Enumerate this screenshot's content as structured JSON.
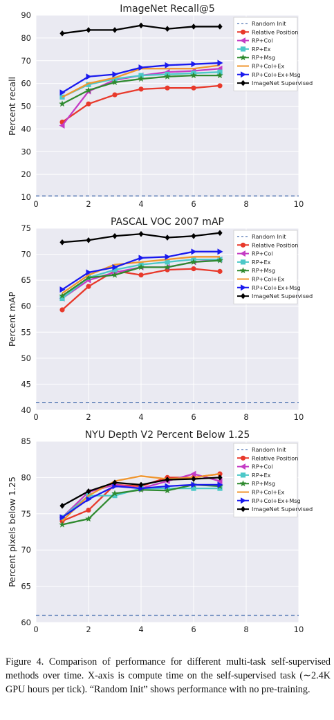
{
  "chart_data": [
    {
      "type": "line",
      "title": "ImageNet Recall@5",
      "xlabel": "",
      "ylabel": "Percent recall",
      "xlim": [
        0,
        10
      ],
      "ylim": [
        10,
        90
      ],
      "xticks": [
        0,
        2,
        4,
        6,
        8,
        10
      ],
      "yticks": [
        10,
        20,
        30,
        40,
        50,
        60,
        70,
        80,
        90
      ],
      "legend_position": "top-right",
      "grid": true,
      "x": [
        1,
        2,
        3,
        4,
        5,
        6,
        7
      ],
      "series": [
        {
          "name": "Random Init",
          "style": "dashed",
          "color": "#4c72b0",
          "marker": "none",
          "values": [
            10.5,
            10.5,
            10.5,
            10.5,
            10.5,
            10.5,
            10.5
          ]
        },
        {
          "name": "Relative Position",
          "color": "#e8392b",
          "marker": "circle",
          "values": [
            43,
            51,
            55,
            57.5,
            58,
            58,
            59
          ]
        },
        {
          "name": "RP+Col",
          "color": "#c43cc4",
          "marker": "triangle-left",
          "values": [
            41.5,
            56.5,
            61.5,
            63.5,
            65,
            65.5,
            66.5
          ]
        },
        {
          "name": "RP+Ex",
          "color": "#4cc8c8",
          "marker": "square",
          "values": [
            54,
            59.5,
            62,
            63.5,
            64,
            64.5,
            65
          ]
        },
        {
          "name": "RP+Msg",
          "color": "#2f8a2f",
          "marker": "star",
          "values": [
            51,
            57,
            60.5,
            62,
            63,
            63.5,
            63.5
          ]
        },
        {
          "name": "RP+Col+Ex",
          "color": "#f0962e",
          "marker": "none",
          "values": [
            54,
            60,
            62.5,
            66.5,
            66.5,
            66.5,
            68
          ]
        },
        {
          "name": "RP+Col+Ex+Msg",
          "color": "#1a1aee",
          "marker": "triangle-right",
          "values": [
            56,
            63,
            64,
            67,
            68,
            68.5,
            69
          ]
        },
        {
          "name": "ImageNet Supervised",
          "color": "#000000",
          "marker": "diamond",
          "values": [
            82,
            83.5,
            83.5,
            85.5,
            84,
            85,
            85
          ]
        }
      ]
    },
    {
      "type": "line",
      "title": "PASCAL VOC 2007 mAP",
      "xlabel": "",
      "ylabel": "Percent mAP",
      "xlim": [
        0,
        10
      ],
      "ylim": [
        40,
        75
      ],
      "xticks": [
        0,
        2,
        4,
        6,
        8,
        10
      ],
      "yticks": [
        40,
        45,
        50,
        55,
        60,
        65,
        70,
        75
      ],
      "legend_position": "top-right",
      "grid": true,
      "x": [
        1,
        2,
        3,
        4,
        5,
        6,
        7
      ],
      "series": [
        {
          "name": "Random Init",
          "style": "dashed",
          "color": "#4c72b0",
          "marker": "none",
          "values": [
            41.5,
            41.5,
            41.5,
            41.5,
            41.5,
            41.5,
            41.5
          ]
        },
        {
          "name": "Relative Position",
          "color": "#e8392b",
          "marker": "circle",
          "values": [
            59.3,
            63.8,
            66.8,
            66,
            67,
            67.2,
            66.7
          ]
        },
        {
          "name": "RP+Col",
          "color": "#c43cc4",
          "marker": "triangle-left",
          "values": [
            61.5,
            65,
            66.5,
            67.5,
            67.5,
            68.5,
            69
          ]
        },
        {
          "name": "RP+Ex",
          "color": "#4cc8c8",
          "marker": "square",
          "values": [
            61.5,
            65.5,
            67,
            68,
            68.5,
            69,
            69
          ]
        },
        {
          "name": "RP+Msg",
          "color": "#2f8a2f",
          "marker": "star",
          "values": [
            62,
            65.5,
            66,
            67.5,
            67.5,
            68.5,
            68.8
          ]
        },
        {
          "name": "RP+Col+Ex",
          "color": "#f0962e",
          "marker": "none",
          "values": [
            62.5,
            66,
            68,
            68.5,
            69,
            69.5,
            69.5
          ]
        },
        {
          "name": "RP+Col+Ex+Msg",
          "color": "#1a1aee",
          "marker": "triangle-right",
          "values": [
            63.2,
            66.5,
            67.5,
            69.3,
            69.5,
            70.5,
            70.5
          ]
        },
        {
          "name": "ImageNet Supervised",
          "color": "#000000",
          "marker": "diamond",
          "values": [
            72.3,
            72.7,
            73.5,
            73.9,
            73.2,
            73.5,
            74.1
          ]
        }
      ]
    },
    {
      "type": "line",
      "title": "NYU Depth V2 Percent Below 1.25",
      "xlabel": "",
      "ylabel": "Percent pixels below 1.25",
      "xlim": [
        0,
        10
      ],
      "ylim": [
        60,
        85
      ],
      "xticks": [
        0,
        2,
        4,
        6,
        8,
        10
      ],
      "yticks": [
        60,
        65,
        70,
        75,
        80,
        85
      ],
      "legend_position": "top-right",
      "grid": true,
      "x": [
        1,
        2,
        3,
        4,
        5,
        6,
        7
      ],
      "series": [
        {
          "name": "Random Init",
          "style": "dashed",
          "color": "#4c72b0",
          "marker": "none",
          "values": [
            61,
            61,
            61,
            61,
            61,
            61,
            61
          ]
        },
        {
          "name": "Relative Position",
          "color": "#e8392b",
          "marker": "circle",
          "values": [
            74,
            75.5,
            79,
            78.8,
            80,
            80,
            80.5
          ]
        },
        {
          "name": "RP+Col",
          "color": "#c43cc4",
          "marker": "triangle-left",
          "values": [
            74.5,
            78,
            79,
            78.5,
            79.5,
            80.5,
            79.5
          ]
        },
        {
          "name": "RP+Ex",
          "color": "#4cc8c8",
          "marker": "square",
          "values": [
            74.5,
            77.5,
            77.5,
            78.5,
            78.5,
            78.5,
            78.5
          ]
        },
        {
          "name": "RP+Msg",
          "color": "#2f8a2f",
          "marker": "star",
          "values": [
            73.5,
            74.3,
            77.8,
            78.3,
            78.2,
            79,
            78.8
          ]
        },
        {
          "name": "RP+Col+Ex",
          "color": "#f0962e",
          "marker": "none",
          "values": [
            74,
            77.5,
            79.5,
            80.2,
            79.8,
            80,
            80.5
          ]
        },
        {
          "name": "RP+Col+Ex+Msg",
          "color": "#1a1aee",
          "marker": "triangle-right",
          "values": [
            74.5,
            77,
            78.8,
            78.5,
            78.8,
            79,
            79
          ]
        },
        {
          "name": "ImageNet Supervised",
          "color": "#000000",
          "marker": "diamond",
          "values": [
            76.1,
            78.1,
            79.3,
            79,
            79.7,
            79.8,
            80
          ]
        }
      ]
    }
  ],
  "caption": "Figure 4.   Comparison of performance for different multi-task self-supervised methods over time. X-axis is compute time on the self-supervised task (∼2.4K GPU hours per tick). “Random Init” shows performance with no pre-training."
}
